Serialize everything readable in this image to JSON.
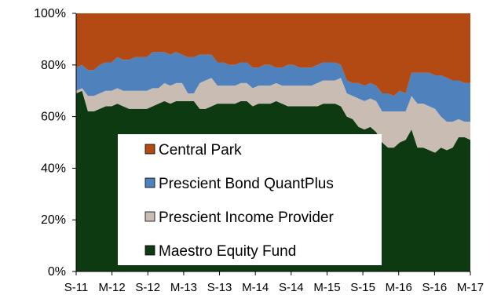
{
  "chart_data": {
    "type": "area",
    "stacked": true,
    "normalized_percent": true,
    "x_tick_labels": [
      "S-11",
      "M-12",
      "S-12",
      "M-13",
      "S-13",
      "M-14",
      "S-14",
      "M-15",
      "S-15",
      "M-16",
      "S-16",
      "M-17"
    ],
    "y_tick_labels": [
      "0%",
      "20%",
      "40%",
      "60%",
      "80%",
      "100%"
    ],
    "ylim": [
      0,
      100
    ],
    "grid": false,
    "legend_placement": "center-left",
    "legend_order": [
      "Central Park",
      "Prescient Bond QuantPlus",
      "Prescient Income Provider",
      "Maestro Equity Fund"
    ],
    "series": [
      {
        "name": "Maestro Equity Fund",
        "color": "#0d3a10",
        "values": [
          69,
          70,
          62,
          62,
          63,
          64,
          64,
          65,
          64,
          63,
          63,
          63,
          63,
          64,
          65,
          66,
          65,
          66,
          66,
          66,
          66,
          63,
          63,
          64,
          65,
          65,
          65,
          65,
          66,
          66,
          64,
          65,
          65,
          65,
          66,
          65,
          64,
          64,
          64,
          64,
          64,
          64,
          65,
          65,
          65,
          64,
          60,
          59,
          56,
          55,
          56,
          54,
          50,
          48,
          48,
          50,
          51,
          55,
          48,
          48,
          47,
          46,
          48,
          47,
          48,
          52,
          52,
          51
        ]
      },
      {
        "name": "Prescient Income Provider",
        "color": "#c9bcb3",
        "values": [
          1,
          1,
          6,
          6,
          6,
          6,
          6,
          6,
          6,
          7,
          7,
          7,
          7,
          7,
          6,
          7,
          7,
          7,
          7,
          3,
          3,
          10,
          11,
          11,
          7,
          7,
          7,
          7,
          7,
          7,
          7,
          7,
          7,
          7,
          7,
          7,
          8,
          8,
          8,
          8,
          8,
          9,
          9,
          9,
          9,
          11,
          9,
          9,
          11,
          11,
          11,
          12,
          12,
          14,
          14,
          12,
          11,
          13,
          17,
          17,
          17,
          17,
          12,
          11,
          10,
          7,
          6,
          7
        ]
      },
      {
        "name": "Prescient Bond QuantPlus",
        "color": "#4f81bd",
        "values": [
          9,
          9,
          10,
          10,
          11,
          11,
          11,
          12,
          12,
          12,
          13,
          13,
          13,
          14,
          14,
          12,
          12,
          12,
          11,
          14,
          14,
          11,
          10,
          9,
          9,
          9,
          8,
          8,
          8,
          8,
          8,
          7,
          8,
          8,
          6,
          7,
          8,
          8,
          7,
          7,
          7,
          7,
          7,
          7,
          7,
          5,
          5,
          5,
          6,
          6,
          6,
          6,
          7,
          7,
          6,
          8,
          7,
          9,
          12,
          12,
          13,
          13,
          16,
          17,
          16,
          15,
          15,
          15
        ]
      },
      {
        "name": "Central Park",
        "color": "#b34a13",
        "values": [
          21,
          20,
          22,
          22,
          20,
          19,
          19,
          17,
          18,
          18,
          17,
          17,
          17,
          15,
          15,
          15,
          16,
          15,
          16,
          17,
          17,
          16,
          16,
          16,
          19,
          19,
          20,
          20,
          19,
          19,
          21,
          21,
          20,
          20,
          21,
          21,
          20,
          20,
          21,
          21,
          21,
          20,
          19,
          19,
          19,
          20,
          26,
          27,
          27,
          28,
          27,
          28,
          31,
          31,
          32,
          30,
          31,
          23,
          23,
          23,
          23,
          24,
          24,
          25,
          26,
          26,
          27,
          27
        ]
      }
    ]
  }
}
